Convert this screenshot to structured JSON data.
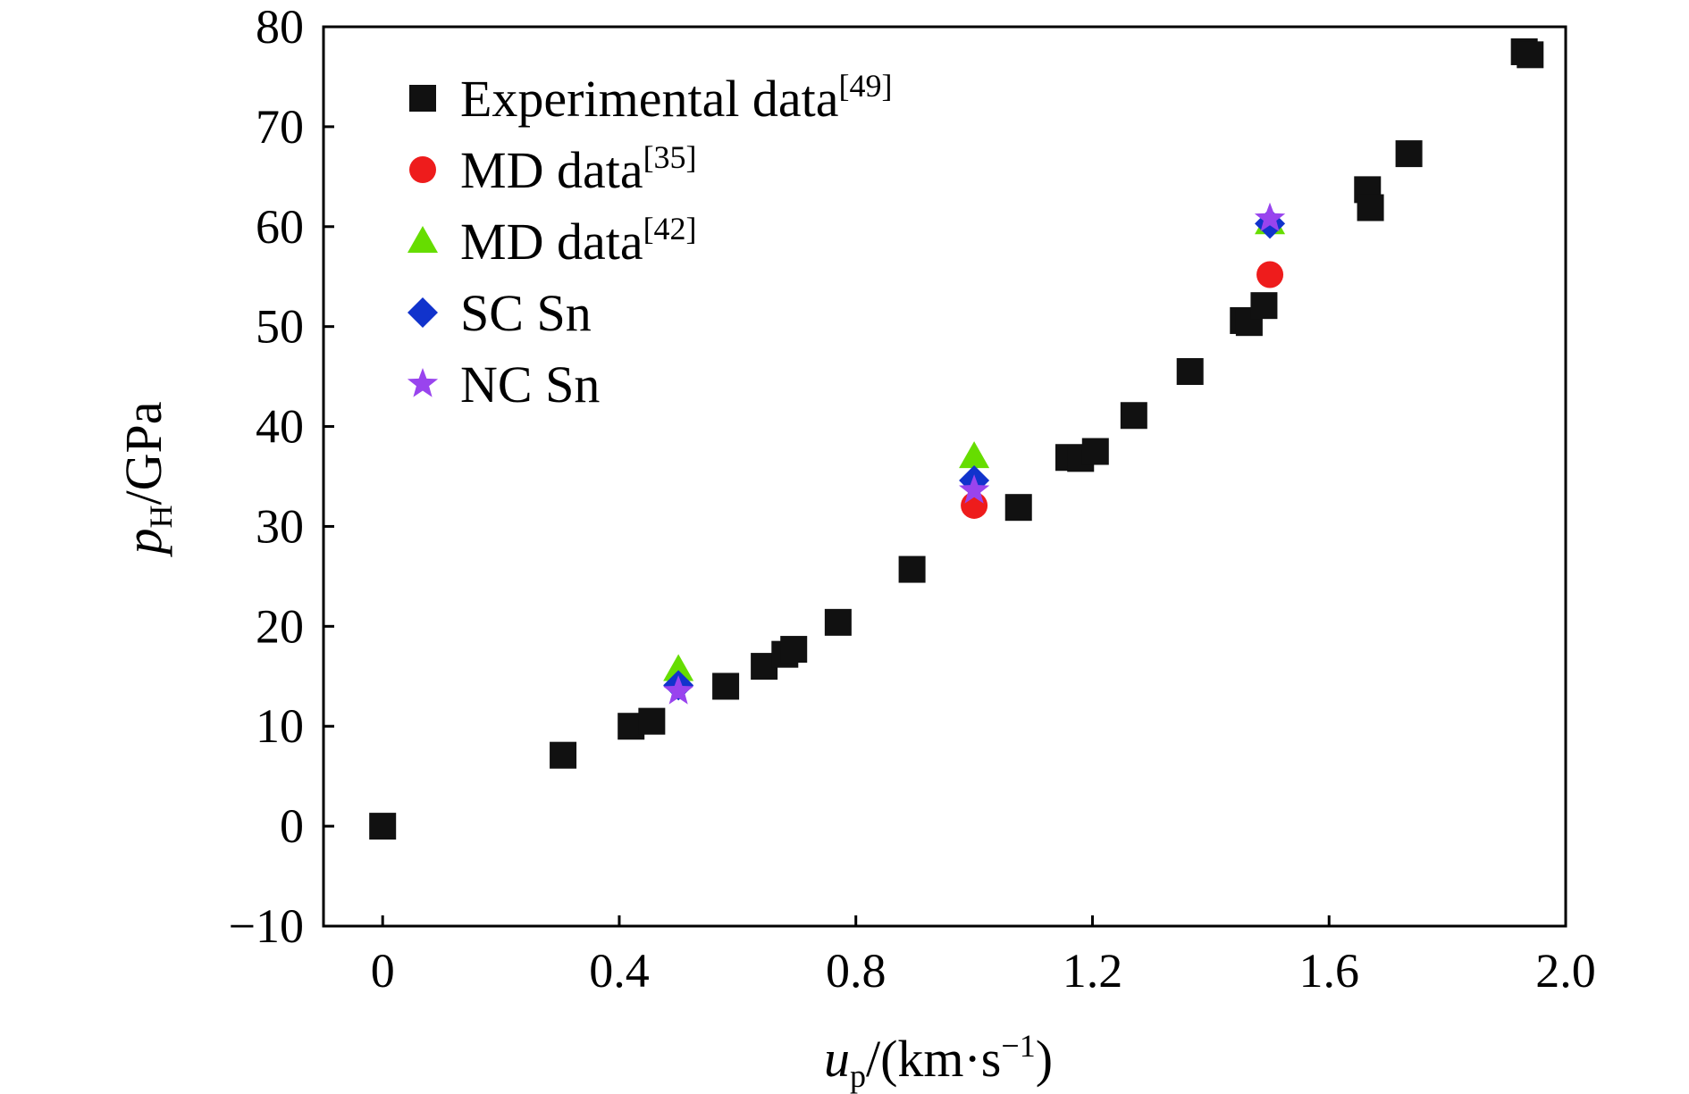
{
  "chart_data": {
    "type": "scatter",
    "title": "",
    "x_axis": {
      "min": -0.1,
      "max": 2.0,
      "ticks": [
        0,
        0.4,
        0.8,
        1.2,
        1.6,
        2.0
      ],
      "tick_labels": [
        "0",
        "0.4",
        "0.8",
        "1.2",
        "1.6",
        "2.0"
      ],
      "label": {
        "var": "u",
        "sub": "p",
        "rest": "/(km·s",
        "sup": "−1",
        "close": ")"
      }
    },
    "y_axis": {
      "min": -10,
      "max": 80,
      "ticks": [
        -10,
        0,
        10,
        20,
        30,
        40,
        50,
        60,
        70,
        80
      ],
      "tick_labels": [
        "−10",
        "0",
        "10",
        "20",
        "30",
        "40",
        "50",
        "60",
        "70",
        "80"
      ],
      "label": {
        "var": "p",
        "sub": "H",
        "rest": "/GPa"
      }
    },
    "grid": false,
    "legend_position": "top-left",
    "series": [
      {
        "name": "Experimental data",
        "name_sup": "[49]",
        "marker": "square",
        "color": "#111111",
        "points": [
          [
            0,
            0
          ],
          [
            0.305,
            7.1
          ],
          [
            0.42,
            10.0
          ],
          [
            0.455,
            10.5
          ],
          [
            0.58,
            14.0
          ],
          [
            0.645,
            16.0
          ],
          [
            0.68,
            17.2
          ],
          [
            0.695,
            17.7
          ],
          [
            0.77,
            20.4
          ],
          [
            0.895,
            25.7
          ],
          [
            1.075,
            31.9
          ],
          [
            1.16,
            36.9
          ],
          [
            1.18,
            36.8
          ],
          [
            1.205,
            37.5
          ],
          [
            1.27,
            41.1
          ],
          [
            1.365,
            45.5
          ],
          [
            1.455,
            50.6
          ],
          [
            1.465,
            50.4
          ],
          [
            1.49,
            52.1
          ],
          [
            1.665,
            63.7
          ],
          [
            1.67,
            61.9
          ],
          [
            1.735,
            67.3
          ],
          [
            1.93,
            77.5
          ],
          [
            1.94,
            77.2
          ]
        ]
      },
      {
        "name": "MD data",
        "name_sup": "[35]",
        "marker": "circle",
        "color": "#ee1c1c",
        "points": [
          [
            1.0,
            32.1
          ],
          [
            1.5,
            55.2
          ]
        ]
      },
      {
        "name": "MD data",
        "name_sup": "[42]",
        "marker": "triangle",
        "color": "#66dd00",
        "points": [
          [
            0.5,
            15.7
          ],
          [
            1.0,
            37.0
          ],
          [
            1.5,
            60.4
          ]
        ]
      },
      {
        "name": "SC Sn",
        "name_sup": "",
        "marker": "diamond",
        "color": "#1133cc",
        "points": [
          [
            0.5,
            14.1
          ],
          [
            1.0,
            34.6
          ],
          [
            1.5,
            60.3
          ]
        ]
      },
      {
        "name": "NC Sn",
        "name_sup": "",
        "marker": "star",
        "color": "#9944ee",
        "points": [
          [
            0.5,
            13.5
          ],
          [
            1.0,
            33.6
          ],
          [
            1.5,
            60.8
          ]
        ]
      }
    ]
  }
}
